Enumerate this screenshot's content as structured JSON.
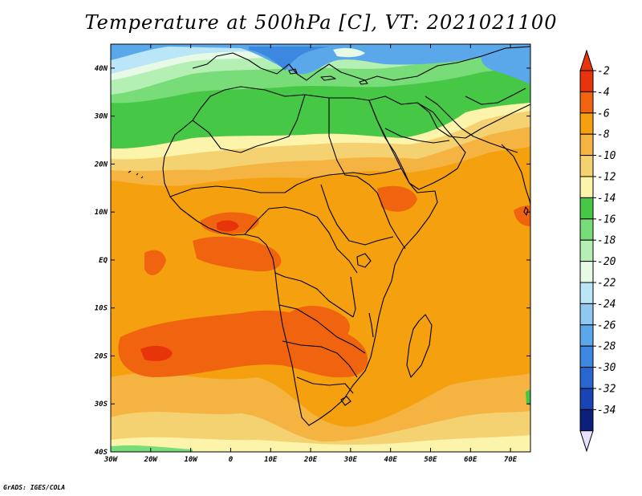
{
  "title": "Temperature at 500hPa [C], VT: 2021021100",
  "credit": "GrADS: IGES/COLA",
  "map": {
    "lon_range": [
      -30,
      75
    ],
    "lat_range": [
      -40,
      45
    ],
    "lat_ticks": [
      "40N",
      "30N",
      "20N",
      "10N",
      "EQ",
      "10S",
      "20S",
      "30S",
      "40S"
    ],
    "lon_ticks": [
      "30W",
      "20W",
      "10W",
      "0",
      "10E",
      "20E",
      "30E",
      "40E",
      "50E",
      "60E",
      "70E"
    ]
  },
  "colorbar": {
    "labels": [
      "-2",
      "-4",
      "-6",
      "-8",
      "-10",
      "-12",
      "-14",
      "-16",
      "-18",
      "-20",
      "-22",
      "-24",
      "-26",
      "-28",
      "-30",
      "-32",
      "-34"
    ],
    "colors": [
      "#e8340a",
      "#f0640f",
      "#f5a00f",
      "#f5b341",
      "#f5d271",
      "#fdf4ab",
      "#46c846",
      "#78dc78",
      "#b4f0b4",
      "#e6fae6",
      "#bae6f8",
      "#8fc8f0",
      "#5aa8ea",
      "#3c88e0",
      "#2a66d0",
      "#1a44b4",
      "#0c1f7a"
    ],
    "top_arrow_color": "#e8340a",
    "bottom_arrow_color": "#e8e0ff"
  },
  "palette": {
    "ocean_warm": "#f5a00f",
    "hot_spot": "#f0640f",
    "hot_core": "#e8340a",
    "mid_yellow": "#f5d271",
    "pale_yellow": "#fdf4ab",
    "light_orange": "#f5b341",
    "green_dark": "#46c846",
    "green_mid": "#78dc78",
    "green_light": "#b4f0b4",
    "cyan_pale": "#e6fae6",
    "blue_light": "#bae6f8",
    "blue_mid": "#5aa8ea",
    "blue_dark": "#3c88e0",
    "outline": "#000000"
  }
}
